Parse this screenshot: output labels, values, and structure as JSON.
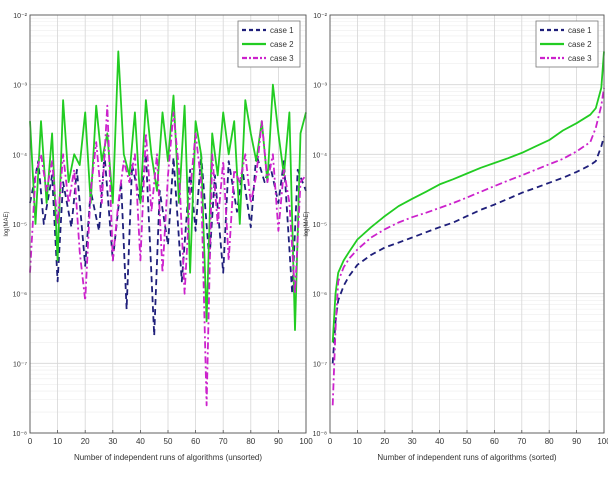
{
  "colors": {
    "case1": "#1f1f7a",
    "case2": "#22cc22",
    "case3": "#cc22cc",
    "grid": "#d6d6d6",
    "axis": "#555555"
  },
  "chart_data": [
    {
      "type": "line",
      "title": "",
      "xlabel": "Number of independent runs of algorithms (unsorted)",
      "ylabel": "log(MAE)",
      "xlim": [
        0,
        100
      ],
      "ylim": [
        1e-08,
        0.01
      ],
      "yscale": "log",
      "xticks": [
        "0",
        "10",
        "20",
        "30",
        "40",
        "50",
        "60",
        "70",
        "80",
        "90",
        "100"
      ],
      "yticks": [
        "10⁻⁸",
        "10⁻⁷",
        "10⁻⁶",
        "10⁻⁵",
        "10⁻⁴",
        "10⁻³",
        "10⁻²"
      ],
      "grid": true,
      "legend_position": "top-right",
      "series": [
        {
          "name": "case 1",
          "style": "dashed",
          "x": [
            0,
            3,
            5,
            8,
            10,
            12,
            15,
            17,
            20,
            22,
            25,
            27,
            30,
            33,
            35,
            37,
            40,
            42,
            45,
            47,
            50,
            52,
            55,
            58,
            60,
            62,
            65,
            67,
            70,
            72,
            75,
            77,
            80,
            82,
            85,
            87,
            90,
            92,
            95,
            97,
            100
          ],
          "y": [
            2e-05,
            8e-05,
            1e-05,
            5e-05,
            1.5e-06,
            4e-05,
            9e-06,
            6e-05,
            2.5e-06,
            3e-05,
            8e-06,
            0.0001,
            3e-06,
            4e-05,
            6e-07,
            7e-05,
            2e-05,
            0.0001,
            2.5e-07,
            3e-05,
            5e-06,
            9e-05,
            1.5e-06,
            6e-05,
            8e-06,
            0.0001,
            3e-06,
            5e-05,
            2e-06,
            8e-05,
            1.5e-05,
            6e-05,
            9e-06,
            0.0001,
            4e-05,
            7e-05,
            2e-05,
            8e-05,
            1e-06,
            6e-05,
            3e-05
          ]
        },
        {
          "name": "case 2",
          "style": "solid",
          "x": [
            0,
            2,
            4,
            6,
            8,
            10,
            12,
            14,
            16,
            18,
            20,
            22,
            24,
            26,
            28,
            30,
            32,
            34,
            36,
            38,
            40,
            42,
            44,
            46,
            48,
            50,
            52,
            54,
            56,
            58,
            60,
            62,
            64,
            66,
            68,
            70,
            72,
            74,
            76,
            78,
            80,
            82,
            84,
            86,
            88,
            90,
            92,
            94,
            96,
            98,
            100
          ],
          "y": [
            0.0003,
            1e-05,
            0.0003,
            2e-05,
            0.0002,
            3e-06,
            0.0006,
            4e-05,
            0.0001,
            7e-05,
            0.0004,
            2e-05,
            0.0005,
            8e-05,
            0.0002,
            2e-05,
            0.003,
            0.0001,
            5e-05,
            0.0004,
            2e-05,
            0.0006,
            0.0001,
            3e-05,
            0.0004,
            8e-05,
            0.0007,
            2e-05,
            0.0005,
            2e-06,
            0.0003,
            0.0001,
            4e-07,
            0.0002,
            5e-05,
            0.0004,
            0.0001,
            0.0003,
            1e-05,
            0.0006,
            0.0002,
            8e-05,
            0.0003,
            4e-05,
            0.001,
            0.0002,
            5e-05,
            0.0004,
            3e-07,
            0.0002,
            0.0004
          ]
        },
        {
          "name": "case 3",
          "style": "dashdot",
          "x": [
            0,
            2,
            4,
            6,
            8,
            10,
            12,
            14,
            16,
            18,
            20,
            22,
            24,
            26,
            28,
            30,
            32,
            34,
            36,
            38,
            40,
            42,
            44,
            46,
            48,
            50,
            52,
            54,
            56,
            58,
            60,
            62,
            64,
            66,
            68,
            70,
            72,
            74,
            76,
            78,
            80,
            82,
            84,
            86,
            88,
            90,
            92,
            94,
            96,
            98,
            100
          ],
          "y": [
            2e-06,
            5e-05,
            0.0001,
            3e-05,
            8e-05,
            1e-05,
            0.0001,
            2e-05,
            6e-05,
            4e-06,
            8e-07,
            3e-05,
            0.00015,
            2e-05,
            0.0005,
            3e-06,
            2e-05,
            8e-05,
            4e-05,
            0.0001,
            3e-06,
            0.0002,
            1.5e-05,
            0.0001,
            2e-06,
            5e-05,
            0.0004,
            6e-05,
            1e-06,
            3e-05,
            0.0002,
            4e-05,
            2.5e-08,
            0.0001,
            1e-05,
            8e-05,
            3e-06,
            6e-05,
            4e-05,
            0.0001,
            2e-05,
            5e-05,
            0.0003,
            4e-05,
            0.0001,
            8e-06,
            6e-05,
            2e-05,
            1e-06,
            4e-05,
            5e-05
          ]
        }
      ]
    },
    {
      "type": "line",
      "title": "",
      "xlabel": "Number of independent runs of algorithms (sorted)",
      "ylabel": "log(MAE)",
      "xlim": [
        0,
        100
      ],
      "ylim": [
        1e-08,
        0.01
      ],
      "yscale": "log",
      "xticks": [
        "0",
        "10",
        "20",
        "30",
        "40",
        "50",
        "60",
        "70",
        "80",
        "90",
        "100"
      ],
      "yticks": [
        "10⁻⁸",
        "10⁻⁷",
        "10⁻⁶",
        "10⁻⁵",
        "10⁻⁴",
        "10⁻³",
        "10⁻²"
      ],
      "grid": true,
      "legend_position": "top-right",
      "series": [
        {
          "name": "case 1",
          "style": "dashed",
          "x": [
            1,
            2,
            3,
            5,
            7,
            10,
            15,
            20,
            25,
            30,
            35,
            40,
            45,
            50,
            55,
            60,
            65,
            70,
            75,
            80,
            85,
            90,
            95,
            97,
            99,
            100
          ],
          "y": [
            1e-07,
            4e-07,
            8e-07,
            1.3e-06,
            1.8e-06,
            2.6e-06,
            3.6e-06,
            4.6e-06,
            5.4e-06,
            6.4e-06,
            7.6e-06,
            9e-06,
            1.05e-05,
            1.3e-05,
            1.6e-05,
            1.9e-05,
            2.3e-05,
            2.8e-05,
            3.3e-05,
            3.9e-05,
            4.6e-05,
            5.6e-05,
            7e-05,
            8e-05,
            0.00013,
            0.00018
          ]
        },
        {
          "name": "case 2",
          "style": "solid",
          "x": [
            1,
            2,
            3,
            5,
            7,
            10,
            15,
            20,
            25,
            30,
            35,
            40,
            45,
            50,
            55,
            60,
            65,
            70,
            75,
            80,
            85,
            90,
            95,
            97,
            99,
            100
          ],
          "y": [
            2e-07,
            1e-06,
            2e-06,
            3e-06,
            4e-06,
            6e-06,
            9e-06,
            1.3e-05,
            1.8e-05,
            2.3e-05,
            2.9e-05,
            3.7e-05,
            4.4e-05,
            5.3e-05,
            6.4e-05,
            7.5e-05,
            8.8e-05,
            0.000105,
            0.00013,
            0.00016,
            0.00022,
            0.00028,
            0.00037,
            0.00046,
            0.0009,
            0.003
          ]
        },
        {
          "name": "case 3",
          "style": "dashdot",
          "x": [
            1,
            2,
            3,
            5,
            7,
            10,
            15,
            20,
            25,
            30,
            35,
            40,
            45,
            50,
            55,
            60,
            65,
            70,
            75,
            80,
            85,
            90,
            95,
            97,
            99,
            100
          ],
          "y": [
            2.5e-08,
            3e-07,
            1.5e-06,
            2.4e-06,
            3.2e-06,
            4.3e-06,
            6.4e-06,
            8.4e-06,
            1.05e-05,
            1.25e-05,
            1.45e-05,
            1.7e-05,
            2e-05,
            2.4e-05,
            2.9e-05,
            3.5e-05,
            4.2e-05,
            5e-05,
            6e-05,
            7.2e-05,
            8.6e-05,
            0.00011,
            0.00015,
            0.00024,
            0.0005,
            0.0009
          ]
        }
      ]
    }
  ]
}
